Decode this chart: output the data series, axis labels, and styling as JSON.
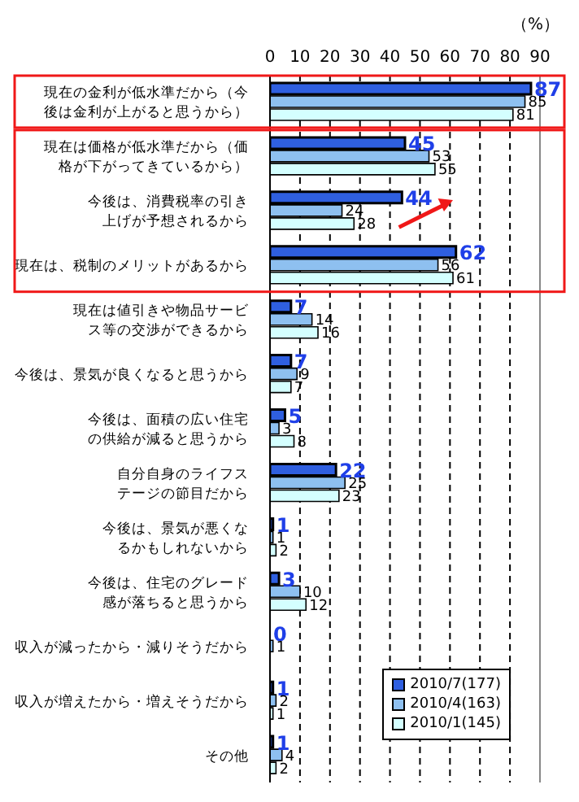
{
  "chart_data": {
    "type": "bar",
    "orientation": "horizontal",
    "xlabel": "（%）",
    "categories": [
      "現在の金利が低水準だから（今後は金利が上がると思うから）",
      "現在は価格が低水準だから（価格が下がってきているから）",
      "今後は、消費税率の引き上げが予想されるから",
      "現在は、税制のメリットがあるから",
      "現在は値引きや物品サービス等の交渉ができるから",
      "今後は、景気が良くなると思うから",
      "今後は、面積の広い住宅の供給が減ると思うから",
      "自分自身のライフステージの節目だから",
      "今後は、景気が悪くなるかもしれないから",
      "今後は、住宅のグレード感が落ちると思うから",
      "収入が減ったから・減りそうだから",
      "収入が増えたから・増えそうだから",
      "その他"
    ],
    "series": [
      {
        "name": "2010/7(177)",
        "color": "#2f5fe0",
        "values": [
          87,
          45,
          44,
          62,
          7,
          7,
          5,
          22,
          1,
          3,
          0,
          1,
          1
        ]
      },
      {
        "name": "2010/4(163)",
        "color": "#8ec0f0",
        "values": [
          85,
          53,
          24,
          56,
          14,
          9,
          3,
          25,
          1,
          10,
          1,
          2,
          4
        ]
      },
      {
        "name": "2010/1(145)",
        "color": "#d4ffff",
        "values": [
          81,
          55,
          28,
          61,
          16,
          7,
          8,
          23,
          2,
          12,
          null,
          1,
          2
        ]
      }
    ],
    "xlim": [
      0,
      90
    ],
    "xticks": [
      0,
      10,
      20,
      30,
      40,
      50,
      60,
      70,
      80,
      90
    ],
    "grid": "x",
    "legend": "bottom right",
    "data_labels": true
  }
}
